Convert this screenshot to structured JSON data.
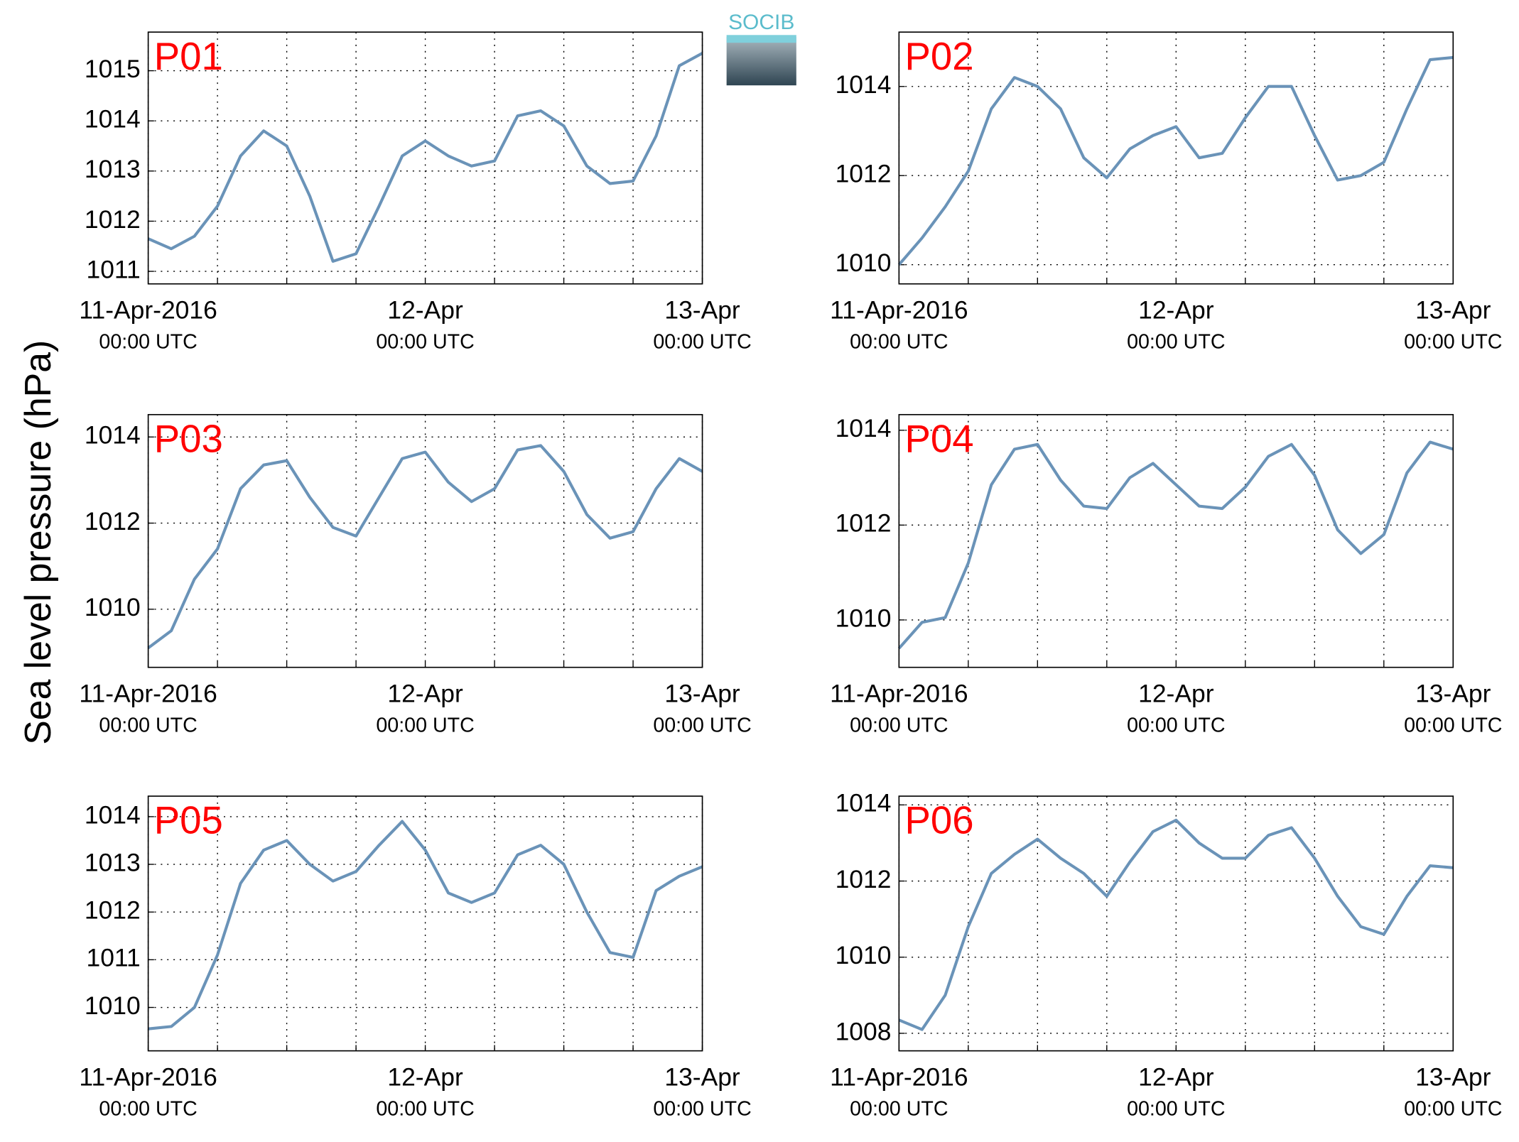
{
  "ylabel": "Sea level pressure (hPa)",
  "logo": "SOCIB",
  "chart_data": [
    {
      "type": "line",
      "label": "P01",
      "color": "#6a93b8",
      "grid": true,
      "x": [
        0,
        2,
        4,
        6,
        8,
        10,
        12,
        14,
        16,
        18,
        20,
        22,
        24,
        26,
        28,
        30,
        32,
        34,
        36,
        38,
        40,
        42,
        44,
        46,
        48
      ],
      "values": [
        1011.65,
        1011.45,
        1011.7,
        1012.3,
        1013.3,
        1013.8,
        1013.5,
        1012.5,
        1011.2,
        1011.35,
        1012.3,
        1013.3,
        1013.6,
        1013.3,
        1013.1,
        1013.2,
        1014.1,
        1014.2,
        1013.9,
        1013.1,
        1012.75,
        1012.8,
        1013.7,
        1015.1,
        1015.35
      ],
      "xlim": [
        0,
        48
      ],
      "xticks": [
        {
          "value": 0,
          "label": [
            "11-Apr-2016",
            "00:00 UTC"
          ]
        },
        {
          "value": 24,
          "label": [
            "12-Apr",
            "00:00 UTC"
          ]
        },
        {
          "value": 48,
          "label": [
            "13-Apr",
            "00:00 UTC"
          ]
        }
      ],
      "xminor": [
        6,
        12,
        18,
        30,
        36,
        42
      ],
      "ylim": [
        1010.75,
        1015.77
      ],
      "yticks": [
        1011,
        1012,
        1013,
        1014,
        1015
      ]
    },
    {
      "type": "line",
      "label": "P02",
      "color": "#6a93b8",
      "grid": true,
      "x": [
        0,
        2,
        4,
        6,
        8,
        10,
        12,
        14,
        16,
        18,
        20,
        22,
        24,
        26,
        28,
        30,
        32,
        34,
        36,
        38,
        40,
        42,
        44,
        46,
        48
      ],
      "values": [
        1010.0,
        1010.6,
        1011.3,
        1012.1,
        1013.5,
        1014.2,
        1014.0,
        1013.5,
        1012.4,
        1011.95,
        1012.6,
        1012.9,
        1013.1,
        1012.4,
        1012.5,
        1013.3,
        1014.0,
        1014.0,
        1012.9,
        1011.9,
        1012.0,
        1012.3,
        1013.5,
        1014.6,
        1014.65
      ],
      "xlim": [
        0,
        48
      ],
      "xticks": [
        {
          "value": 0,
          "label": [
            "11-Apr-2016",
            "00:00 UTC"
          ]
        },
        {
          "value": 24,
          "label": [
            "12-Apr",
            "00:00 UTC"
          ]
        },
        {
          "value": 48,
          "label": [
            "13-Apr",
            "00:00 UTC"
          ]
        }
      ],
      "xminor": [
        6,
        12,
        18,
        30,
        36,
        42
      ],
      "ylim": [
        1009.57,
        1015.22
      ],
      "yticks": [
        1010,
        1012,
        1014
      ]
    },
    {
      "type": "line",
      "label": "P03",
      "color": "#6a93b8",
      "grid": true,
      "x": [
        0,
        2,
        4,
        6,
        8,
        10,
        12,
        14,
        16,
        18,
        20,
        22,
        24,
        26,
        28,
        30,
        32,
        34,
        36,
        38,
        40,
        42,
        44,
        46,
        48
      ],
      "values": [
        1009.1,
        1009.5,
        1010.7,
        1011.4,
        1012.8,
        1013.35,
        1013.45,
        1012.6,
        1011.9,
        1011.7,
        1012.6,
        1013.5,
        1013.65,
        1012.95,
        1012.5,
        1012.8,
        1013.7,
        1013.8,
        1013.2,
        1012.2,
        1011.65,
        1011.8,
        1012.8,
        1013.5,
        1013.2
      ],
      "xlim": [
        0,
        48
      ],
      "xticks": [
        {
          "value": 0,
          "label": [
            "11-Apr-2016",
            "00:00 UTC"
          ]
        },
        {
          "value": 24,
          "label": [
            "12-Apr",
            "00:00 UTC"
          ]
        },
        {
          "value": 48,
          "label": [
            "13-Apr",
            "00:00 UTC"
          ]
        }
      ],
      "xminor": [
        6,
        12,
        18,
        30,
        36,
        42
      ],
      "ylim": [
        1008.65,
        1014.52
      ],
      "yticks": [
        1010,
        1012,
        1014
      ]
    },
    {
      "type": "line",
      "label": "P04",
      "color": "#6a93b8",
      "grid": true,
      "x": [
        0,
        2,
        4,
        6,
        8,
        10,
        12,
        14,
        16,
        18,
        20,
        22,
        24,
        26,
        28,
        30,
        32,
        34,
        36,
        38,
        40,
        42,
        44,
        46,
        48
      ],
      "values": [
        1009.4,
        1009.95,
        1010.05,
        1011.2,
        1012.85,
        1013.6,
        1013.7,
        1012.95,
        1012.4,
        1012.35,
        1013.0,
        1013.3,
        1012.85,
        1012.4,
        1012.35,
        1012.8,
        1013.45,
        1013.7,
        1013.05,
        1011.9,
        1011.4,
        1011.8,
        1013.1,
        1013.75,
        1013.6
      ],
      "xlim": [
        0,
        48
      ],
      "xticks": [
        {
          "value": 0,
          "label": [
            "11-Apr-2016",
            "00:00 UTC"
          ]
        },
        {
          "value": 24,
          "label": [
            "12-Apr",
            "00:00 UTC"
          ]
        },
        {
          "value": 48,
          "label": [
            "13-Apr",
            "00:00 UTC"
          ]
        }
      ],
      "xminor": [
        6,
        12,
        18,
        30,
        36,
        42
      ],
      "ylim": [
        1009.0,
        1014.33
      ],
      "yticks": [
        1010,
        1012,
        1014
      ]
    },
    {
      "type": "line",
      "label": "P05",
      "color": "#6a93b8",
      "grid": true,
      "x": [
        0,
        2,
        4,
        6,
        8,
        10,
        12,
        14,
        16,
        18,
        20,
        22,
        24,
        26,
        28,
        30,
        32,
        34,
        36,
        38,
        40,
        42,
        44,
        46,
        48
      ],
      "values": [
        1009.55,
        1009.6,
        1010.0,
        1011.1,
        1012.6,
        1013.3,
        1013.5,
        1013.0,
        1012.65,
        1012.85,
        1013.4,
        1013.9,
        1013.3,
        1012.4,
        1012.2,
        1012.4,
        1013.2,
        1013.4,
        1013.0,
        1012.0,
        1011.15,
        1011.05,
        1012.45,
        1012.75,
        1012.95
      ],
      "xlim": [
        0,
        48
      ],
      "xticks": [
        {
          "value": 0,
          "label": [
            "11-Apr-2016",
            "00:00 UTC"
          ]
        },
        {
          "value": 24,
          "label": [
            "12-Apr",
            "00:00 UTC"
          ]
        },
        {
          "value": 48,
          "label": [
            "13-Apr",
            "00:00 UTC"
          ]
        }
      ],
      "xminor": [
        6,
        12,
        18,
        30,
        36,
        42
      ],
      "ylim": [
        1009.09,
        1014.43
      ],
      "yticks": [
        1010,
        1011,
        1012,
        1013,
        1014
      ]
    },
    {
      "type": "line",
      "label": "P06",
      "color": "#6a93b8",
      "grid": true,
      "x": [
        0,
        2,
        4,
        6,
        8,
        10,
        12,
        14,
        16,
        18,
        20,
        22,
        24,
        26,
        28,
        30,
        32,
        34,
        36,
        38,
        40,
        42,
        44,
        46,
        48
      ],
      "values": [
        1008.35,
        1008.1,
        1009.0,
        1010.8,
        1012.2,
        1012.7,
        1013.1,
        1012.6,
        1012.2,
        1011.6,
        1012.5,
        1013.3,
        1013.6,
        1013.0,
        1012.6,
        1012.6,
        1013.2,
        1013.4,
        1012.6,
        1011.6,
        1010.8,
        1010.6,
        1011.6,
        1012.4,
        1012.35
      ],
      "xlim": [
        0,
        48
      ],
      "xticks": [
        {
          "value": 0,
          "label": [
            "11-Apr-2016",
            "00:00 UTC"
          ]
        },
        {
          "value": 24,
          "label": [
            "12-Apr",
            "00:00 UTC"
          ]
        },
        {
          "value": 48,
          "label": [
            "13-Apr",
            "00:00 UTC"
          ]
        }
      ],
      "xminor": [
        6,
        12,
        18,
        30,
        36,
        42
      ],
      "ylim": [
        1007.54,
        1014.23
      ],
      "yticks": [
        1008,
        1010,
        1012,
        1014
      ]
    }
  ]
}
